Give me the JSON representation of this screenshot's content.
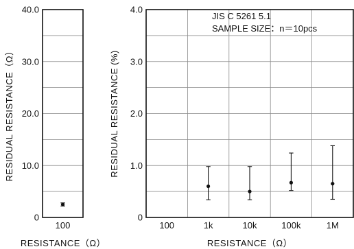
{
  "chart_data": [
    {
      "type": "scatter",
      "style": "mean-with-error-bars",
      "categories": [
        "100"
      ],
      "series": [
        {
          "values": [
            2.5
          ],
          "min": [
            2.2
          ],
          "max": [
            2.8
          ]
        }
      ],
      "yticks": [
        "0",
        "10.0",
        "20.0",
        "30.0",
        "40.0"
      ],
      "ylim": [
        0,
        40
      ],
      "xlabel": "RESISTANCE（Ω）",
      "ylabel": "RESIDUAL  RESISTANCE（Ω）",
      "grid": true,
      "colors": {
        "marker": "#111111",
        "grid": "#8a8a8a"
      }
    },
    {
      "type": "scatter",
      "style": "mean-with-error-bars",
      "categories": [
        "100",
        "1k",
        "10k",
        "100k",
        "1M"
      ],
      "series": [
        {
          "values": [
            null,
            0.6,
            0.5,
            0.67,
            0.65
          ],
          "min": [
            null,
            0.34,
            0.34,
            0.52,
            0.35
          ],
          "max": [
            null,
            0.98,
            0.98,
            1.24,
            1.38
          ]
        }
      ],
      "yticks": [
        "0",
        "1.0",
        "2.0",
        "3.0",
        "4.0"
      ],
      "ylim": [
        0,
        4.0
      ],
      "xlabel": "RESISTANCE（Ω）",
      "ylabel": "RESIDUAL  RESISTANCE  (%)",
      "annotations": [
        "JIS  C  5261  5.1",
        "SAMPLE  SIZE：n＝10pcs"
      ],
      "grid": true,
      "colors": {
        "marker": "#111111",
        "grid": "#8a8a8a"
      }
    }
  ]
}
